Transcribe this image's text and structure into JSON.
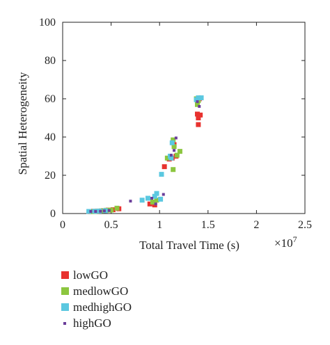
{
  "chart_data": {
    "type": "scatter",
    "xlabel": "Total Travel Time (s)",
    "ylabel": "Spatial Heterogeneity",
    "x_multiplier_label": "×10",
    "x_multiplier_exponent": "7",
    "xlim": [
      0,
      2.5
    ],
    "ylim": [
      0,
      100
    ],
    "xticks": [
      "0",
      "0.5",
      "1",
      "1.5",
      "2",
      "2.5"
    ],
    "yticks": [
      "0",
      "20",
      "40",
      "60",
      "80",
      "100"
    ],
    "grid": false,
    "legend_placement": "bottom-left outside",
    "series": [
      {
        "name": "lowGO",
        "color": "#e8322f",
        "marker": "square",
        "points": [
          [
            0.28,
            1
          ],
          [
            0.32,
            1.2
          ],
          [
            0.36,
            1.3
          ],
          [
            0.42,
            1.5
          ],
          [
            0.47,
            1.8
          ],
          [
            0.52,
            2
          ],
          [
            0.58,
            2.5
          ],
          [
            0.9,
            5
          ],
          [
            0.95,
            4.5
          ],
          [
            1.05,
            24.5
          ],
          [
            1.1,
            28.5
          ],
          [
            1.13,
            29
          ],
          [
            1.15,
            36
          ],
          [
            1.17,
            30
          ],
          [
            1.39,
            52
          ],
          [
            1.4,
            46.5
          ],
          [
            1.41,
            60
          ],
          [
            1.42,
            51.5
          ],
          [
            1.4,
            50
          ]
        ]
      },
      {
        "name": "medlowGO",
        "color": "#8cc63f",
        "marker": "square",
        "points": [
          [
            0.3,
            1
          ],
          [
            0.35,
            1.2
          ],
          [
            0.4,
            1.4
          ],
          [
            0.45,
            1.7
          ],
          [
            0.5,
            1.8
          ],
          [
            0.56,
            2.8
          ],
          [
            0.93,
            6
          ],
          [
            0.97,
            7
          ],
          [
            1.08,
            29
          ],
          [
            1.14,
            38.5
          ],
          [
            1.15,
            35
          ],
          [
            1.14,
            23
          ],
          [
            1.18,
            30.5
          ],
          [
            1.21,
            32.5
          ],
          [
            1.38,
            60
          ],
          [
            1.39,
            57
          ],
          [
            1.4,
            59
          ]
        ]
      },
      {
        "name": "medhighGO",
        "color": "#5bc8e0",
        "marker": "square",
        "points": [
          [
            0.27,
            1.1
          ],
          [
            0.33,
            1.2
          ],
          [
            0.38,
            1.3
          ],
          [
            0.44,
            1.5
          ],
          [
            0.82,
            7
          ],
          [
            0.88,
            8
          ],
          [
            0.95,
            9
          ],
          [
            0.97,
            10.5
          ],
          [
            1.01,
            7.5
          ],
          [
            1.02,
            20.5
          ],
          [
            1.11,
            30
          ],
          [
            1.12,
            29
          ],
          [
            1.13,
            37
          ],
          [
            1.38,
            59.5
          ],
          [
            1.4,
            60.5
          ],
          [
            1.43,
            60.5
          ]
        ]
      },
      {
        "name": "highGO",
        "color": "#6a3d9a",
        "marker": "square",
        "points": [
          [
            0.29,
            1.1
          ],
          [
            0.34,
            1.1
          ],
          [
            0.39,
            1.2
          ],
          [
            0.43,
            1.4
          ],
          [
            0.48,
            1.6
          ],
          [
            0.7,
            6.5
          ],
          [
            0.92,
            8
          ],
          [
            0.96,
            5
          ],
          [
            1.04,
            10
          ],
          [
            1.12,
            30.5
          ],
          [
            1.17,
            39.5
          ],
          [
            1.15,
            33
          ],
          [
            1.39,
            58.5
          ],
          [
            1.41,
            56
          ]
        ]
      }
    ]
  }
}
